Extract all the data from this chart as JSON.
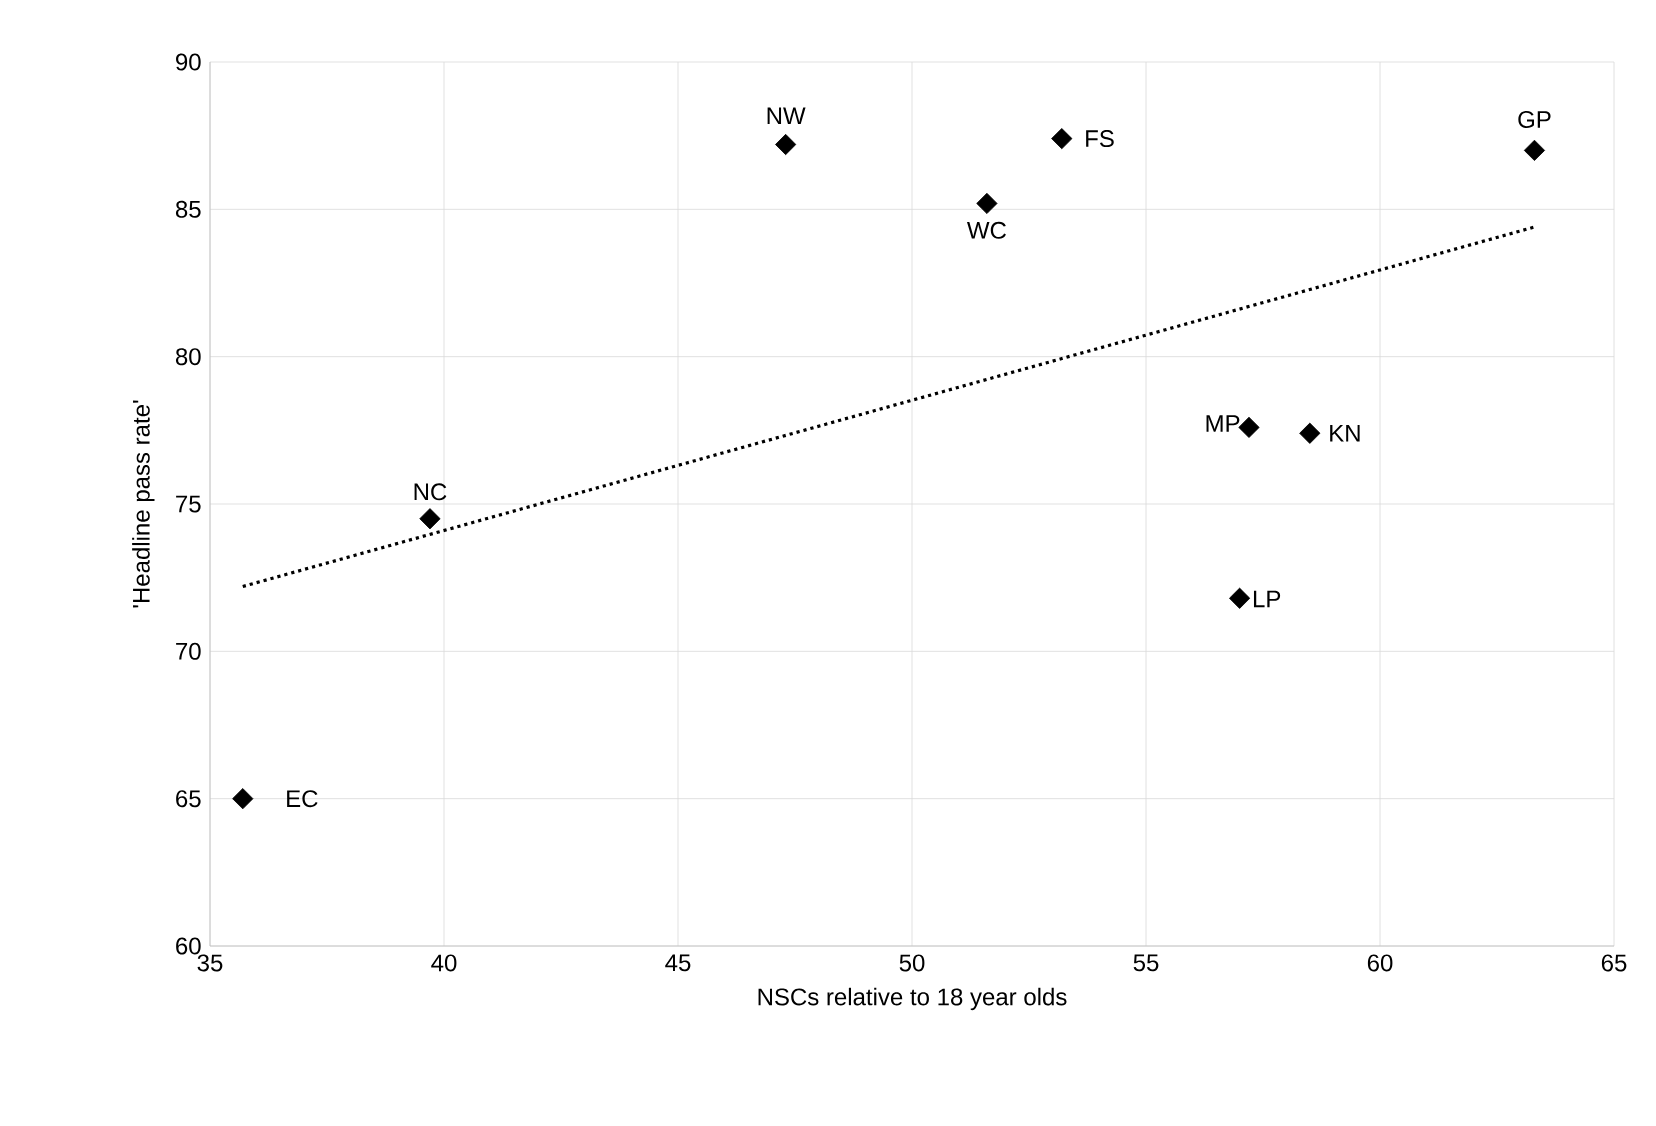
{
  "chart_data": {
    "type": "scatter",
    "xlabel": "NSCs relative to 18 year olds",
    "ylabel": "'Headline pass rate'",
    "xlim": [
      35,
      65
    ],
    "xticks": [
      35,
      40,
      45,
      50,
      55,
      60,
      65
    ],
    "ylim": [
      60,
      90
    ],
    "yticks": [
      60,
      65,
      70,
      75,
      80,
      85,
      90
    ],
    "grid": true,
    "series": [
      {
        "color": "#000000",
        "marker": "diamond",
        "x": [
          35.7,
          39.7,
          47.3,
          51.6,
          53.2,
          63.3,
          57.2,
          58.5,
          57.0
        ],
        "values": [
          65.0,
          74.5,
          87.2,
          85.2,
          87.4,
          87.0,
          77.6,
          77.4,
          71.8
        ]
      },
      {
        "type": "line",
        "color": "#000000",
        "line_style": "dotted",
        "marker": "none",
        "x": [
          35.7,
          63.3
        ],
        "values": [
          72.2,
          84.4
        ]
      }
    ],
    "annotations": [
      {
        "text": "EC",
        "x": 35.7,
        "y": 65.0
      },
      {
        "text": "NC",
        "x": 39.7,
        "y": 74.5
      },
      {
        "text": "NW",
        "x": 47.3,
        "y": 87.2
      },
      {
        "text": "WC",
        "x": 51.6,
        "y": 85.2
      },
      {
        "text": "FS",
        "x": 53.2,
        "y": 87.4
      },
      {
        "text": "GP",
        "x": 63.3,
        "y": 87.0
      },
      {
        "text": "MP",
        "x": 57.2,
        "y": 77.6
      },
      {
        "text": "KN",
        "x": 58.5,
        "y": 77.4
      },
      {
        "text": "LP",
        "x": 57.0,
        "y": 71.8
      }
    ]
  }
}
